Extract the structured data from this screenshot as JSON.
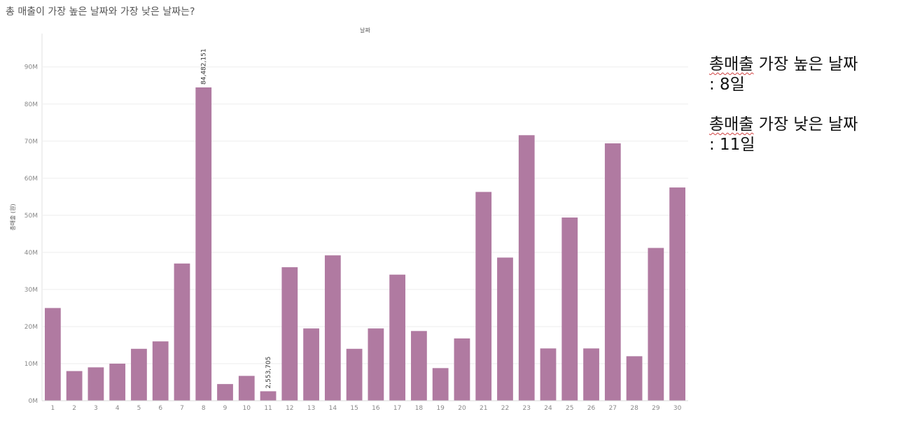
{
  "page": {
    "question": "총 매출이 가장 높은 날짜와 가장 낮은 날짜는?"
  },
  "notes": {
    "highest_label": "총매출",
    "highest_rest": " 가장 높은 날짜",
    "highest_value": ": 8일",
    "lowest_label": "총매출",
    "lowest_rest": " 가장 낮은 날짜",
    "lowest_value": ": 11일"
  },
  "colors": {
    "bar": "#b07aa1",
    "grid": "#eeeeee",
    "axis_text": "#888888"
  },
  "chart_data": {
    "type": "bar",
    "title": "날짜",
    "xlabel": "",
    "ylabel": "총매출 (원)",
    "categories": [
      "1",
      "2",
      "3",
      "4",
      "5",
      "6",
      "7",
      "8",
      "9",
      "10",
      "11",
      "12",
      "13",
      "14",
      "15",
      "16",
      "17",
      "18",
      "19",
      "20",
      "21",
      "22",
      "23",
      "24",
      "25",
      "26",
      "27",
      "28",
      "29",
      "30"
    ],
    "values": [
      25000000,
      8000000,
      9000000,
      10000000,
      14000000,
      16000000,
      37000000,
      84482151,
      4500000,
      6700000,
      2553705,
      36000000,
      19500000,
      39200000,
      14000000,
      19500000,
      34000000,
      18800000,
      8800000,
      16800000,
      56300000,
      38600000,
      71600000,
      14100000,
      49400000,
      14100000,
      69400000,
      12000000,
      41200000,
      57500000
    ],
    "data_labels": {
      "8": "84,482,151",
      "11": "2,553,705"
    },
    "ylim": [
      0,
      99000000
    ],
    "yticks": [
      0,
      10000000,
      20000000,
      30000000,
      40000000,
      50000000,
      60000000,
      70000000,
      80000000,
      90000000
    ],
    "ytick_labels": [
      "0M",
      "10M",
      "20M",
      "30M",
      "40M",
      "50M",
      "60M",
      "70M",
      "80M",
      "90M"
    ],
    "grid": true
  }
}
